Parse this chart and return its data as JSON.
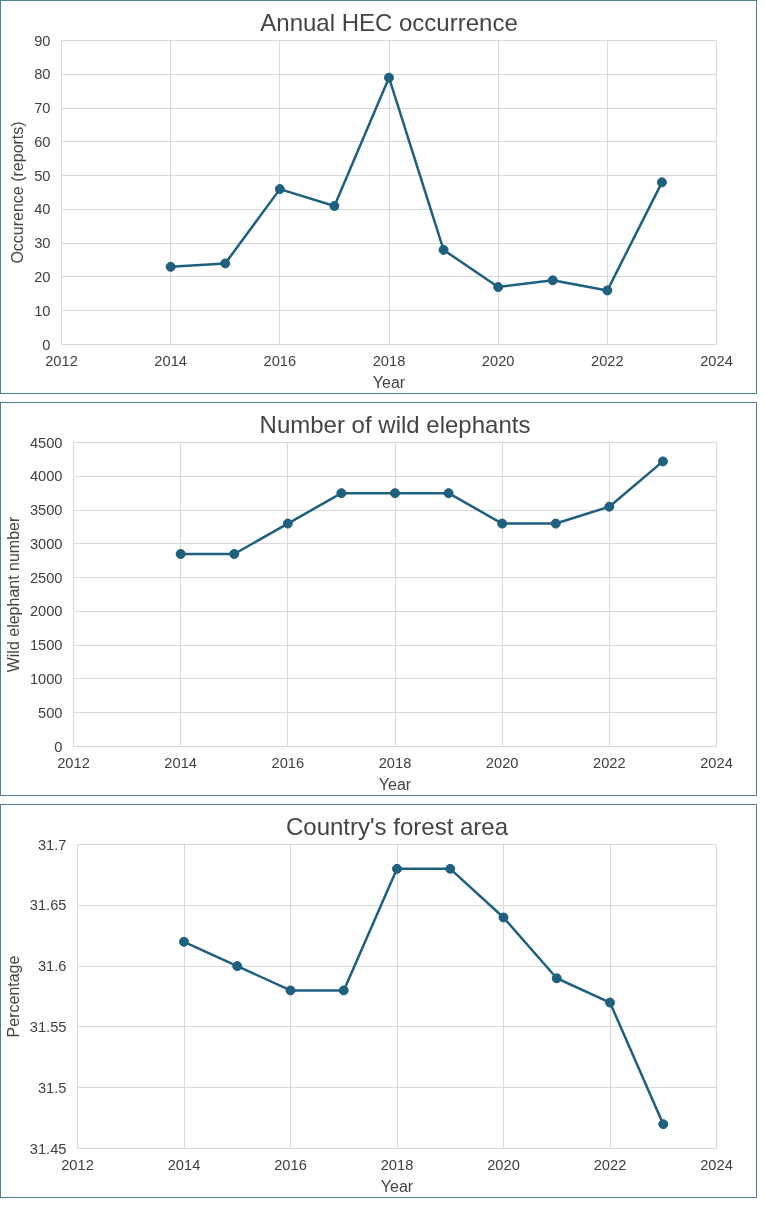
{
  "chart_data": [
    {
      "type": "line",
      "title": "Annual HEC occurrence",
      "xlabel": "Year",
      "ylabel": "Occurence (reports)",
      "x": [
        2014,
        2015,
        2016,
        2017,
        2018,
        2019,
        2020,
        2021,
        2022,
        2023
      ],
      "series": [
        {
          "color": "#1f5f7f",
          "values": [
            23,
            24,
            46,
            41,
            79,
            28,
            17,
            19,
            16,
            48
          ]
        }
      ],
      "xlim": [
        2012,
        2024
      ],
      "xticks": [
        2012,
        2014,
        2016,
        2018,
        2020,
        2022,
        2024
      ],
      "ylim": [
        0,
        90
      ],
      "yticks": [
        0,
        10,
        20,
        30,
        40,
        50,
        60,
        70,
        80,
        90
      ],
      "grid": true,
      "marker": "circle",
      "line_style": "solid"
    },
    {
      "type": "line",
      "title": "Number of wild elephants",
      "xlabel": "Year",
      "ylabel": "Wild elephant number",
      "x": [
        2014,
        2015,
        2016,
        2017,
        2018,
        2019,
        2020,
        2021,
        2022,
        2023
      ],
      "series": [
        {
          "color": "#1f5f7f",
          "values": [
            2850,
            2850,
            3300,
            3750,
            3750,
            3750,
            3300,
            3300,
            3550,
            4220
          ]
        }
      ],
      "xlim": [
        2012,
        2024
      ],
      "xticks": [
        2012,
        2014,
        2016,
        2018,
        2020,
        2022,
        2024
      ],
      "ylim": [
        0,
        4500
      ],
      "yticks": [
        0,
        500,
        1000,
        1500,
        2000,
        2500,
        3000,
        3500,
        4000,
        4500
      ],
      "grid": true,
      "marker": "circle",
      "line_style": "solid"
    },
    {
      "type": "line",
      "title": "Country's forest area",
      "xlabel": "Year",
      "ylabel": "Percentage",
      "x": [
        2014,
        2015,
        2016,
        2017,
        2018,
        2019,
        2020,
        2021,
        2022,
        2023
      ],
      "series": [
        {
          "color": "#1f5f7f",
          "values": [
            31.62,
            31.6,
            31.58,
            31.58,
            31.68,
            31.68,
            31.64,
            31.59,
            31.57,
            31.47
          ]
        }
      ],
      "xlim": [
        2012,
        2024
      ],
      "xticks": [
        2012,
        2014,
        2016,
        2018,
        2020,
        2022,
        2024
      ],
      "ylim": [
        31.45,
        31.7
      ],
      "yticks": [
        31.45,
        31.5,
        31.55,
        31.6,
        31.65,
        31.7
      ],
      "grid": true,
      "marker": "circle",
      "line_style": "solid"
    }
  ]
}
